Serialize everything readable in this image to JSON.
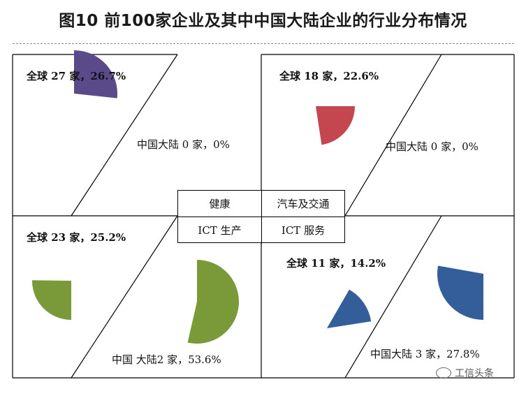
{
  "title": "图10  前100家企业及其中中国大陆企业的行业分布情况",
  "center_table": {
    "top_left": "健康",
    "top_right": "汽车及交通",
    "bottom_left": "ICT 生产",
    "bottom_right": "ICT 服务"
  },
  "watermark": "工信头条",
  "colors": {
    "health": "#5b4a8a",
    "auto": "#c4474f",
    "ict_production": "#7a9a3a",
    "ict_services": "#345e9a"
  },
  "chart_data": {
    "type": "pie",
    "panels": [
      {
        "industry": "健康",
        "global_label": "全球 27 家，26.7%",
        "global_count": 27,
        "global_pct": 26.7,
        "china_label": "中国大陆 0 家，0%",
        "china_count": 0,
        "china_pct": 0
      },
      {
        "industry": "汽车及交通",
        "global_label": "全球 18 家，22.6%",
        "global_count": 18,
        "global_pct": 22.6,
        "china_label": "中国大陆 0 家，0%",
        "china_count": 0,
        "china_pct": 0
      },
      {
        "industry": "ICT 生产",
        "global_label": "全球 23 家，25.2%",
        "global_count": 23,
        "global_pct": 25.2,
        "china_label": "中国 大陆2 家，53.6%",
        "china_count": 2,
        "china_pct": 53.6
      },
      {
        "industry": "ICT 服务",
        "global_label": "全球 11 家，14.2%",
        "global_count": 11,
        "global_pct": 14.2,
        "china_label": "中国大陆 3 家，27.8%",
        "china_count": 3,
        "china_pct": 27.8
      }
    ]
  }
}
